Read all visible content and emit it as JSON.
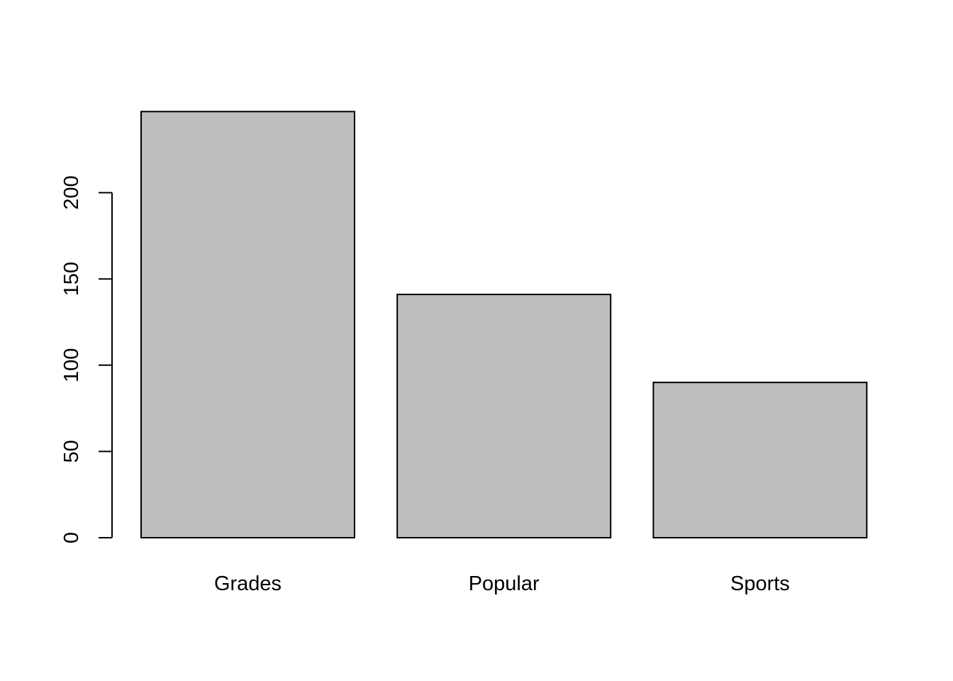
{
  "chart_data": {
    "type": "bar",
    "title": "",
    "xlabel": "",
    "ylabel": "",
    "categories": [
      "Grades",
      "Popular",
      "Sports"
    ],
    "values": [
      247,
      141,
      90
    ],
    "ylim": [
      0,
      247
    ],
    "yticks": [
      0,
      50,
      100,
      150,
      200
    ],
    "grid": false,
    "bar_fill": "#bebebe",
    "bar_stroke": "#000000"
  }
}
